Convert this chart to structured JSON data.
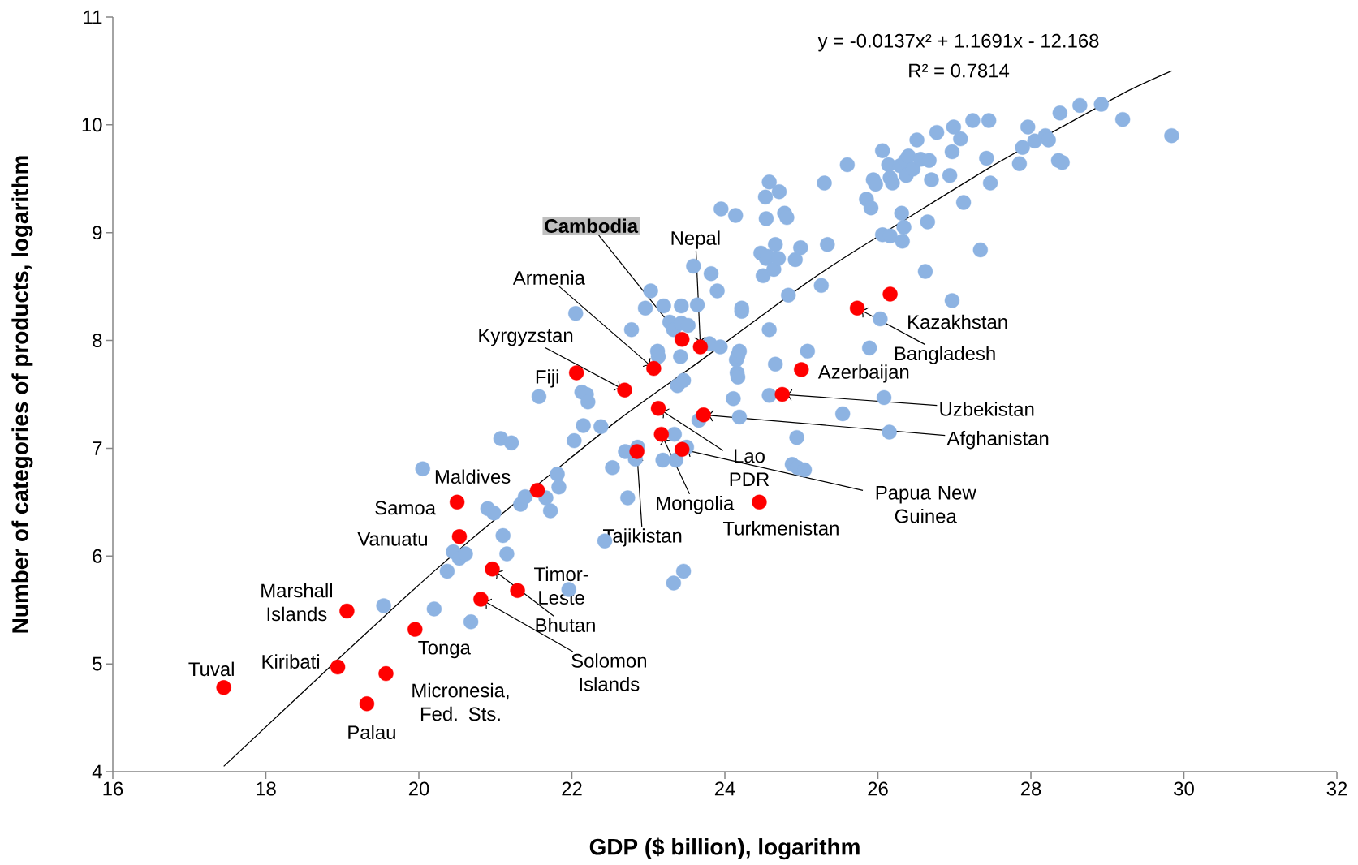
{
  "chart_data": {
    "type": "scatter",
    "xlabel": "GDP ($ billion), logarithm",
    "ylabel": "Number of categories of  products, logarithm",
    "xlim": [
      16,
      32
    ],
    "xticks": [
      16,
      18,
      20,
      22,
      24,
      26,
      28,
      30,
      32
    ],
    "ylim": [
      4,
      11
    ],
    "yticks": [
      4,
      5,
      6,
      7,
      8,
      9,
      10,
      11
    ],
    "marker": "circle",
    "series": [
      {
        "color": "#8db3e2",
        "x": [
          19.54,
          20.2,
          20.05,
          20.68,
          20.37,
          20.45,
          20.53,
          20.61,
          20.9,
          20.98,
          21.33,
          21.39,
          21.66,
          21.72,
          21.1,
          21.15,
          21.07,
          21.21,
          21.57,
          21.81,
          21.83,
          21.96,
          22.03,
          22.05,
          22.15,
          22.13,
          22.19,
          22.21,
          22.38,
          22.43,
          22.53,
          22.7,
          22.73,
          22.78,
          22.86,
          22.83,
          22.96,
          23.03,
          23.12,
          23.2,
          23.13,
          23.28,
          23.33,
          23.43,
          23.43,
          23.52,
          23.38,
          23.46,
          23.42,
          23.34,
          23.19,
          23.33,
          23.46,
          23.36,
          23.5,
          23.66,
          23.59,
          23.64,
          23.8,
          23.82,
          23.9,
          23.95,
          23.94,
          24.11,
          24.16,
          24.15,
          24.17,
          24.17,
          24.19,
          24.19,
          24.22,
          24.22,
          24.14,
          24.47,
          24.5,
          24.54,
          24.56,
          24.64,
          24.7,
          24.66,
          24.54,
          24.53,
          24.58,
          24.71,
          24.78,
          24.81,
          24.58,
          24.66,
          24.58,
          24.83,
          24.92,
          24.99,
          24.94,
          24.88,
          24.95,
          25.04,
          25.08,
          25.26,
          25.34,
          25.3,
          25.6,
          25.54,
          25.85,
          25.91,
          25.94,
          25.97,
          25.89,
          26.03,
          26.06,
          26.06,
          26.08,
          26.15,
          26.14,
          26.16,
          26.19,
          26.16,
          26.32,
          26.34,
          26.31,
          26.29,
          26.36,
          26.37,
          26.4,
          26.46,
          26.51,
          26.56,
          26.67,
          26.7,
          26.65,
          26.62,
          26.77,
          26.94,
          26.97,
          26.97,
          26.99,
          27.08,
          27.12,
          27.24,
          27.34,
          27.42,
          27.45,
          27.47,
          27.85,
          27.89,
          27.96,
          28.05,
          28.19,
          28.23,
          28.36,
          28.41,
          28.38,
          28.64,
          28.92,
          29.2,
          29.84
        ],
        "values": [
          5.54,
          5.51,
          6.81,
          5.39,
          5.86,
          6.04,
          5.98,
          6.02,
          6.44,
          6.4,
          6.48,
          6.55,
          6.54,
          6.42,
          6.19,
          6.02,
          7.09,
          7.05,
          7.48,
          6.76,
          6.64,
          5.69,
          7.07,
          8.25,
          7.21,
          7.52,
          7.5,
          7.43,
          7.2,
          6.14,
          6.82,
          6.97,
          6.54,
          8.1,
          7.01,
          6.9,
          8.3,
          8.46,
          7.9,
          8.32,
          7.85,
          8.17,
          8.1,
          8.32,
          8.16,
          8.14,
          7.58,
          7.63,
          7.85,
          7.13,
          6.89,
          5.75,
          5.86,
          6.89,
          7.01,
          7.26,
          8.69,
          8.33,
          7.97,
          8.62,
          8.46,
          9.22,
          7.94,
          7.46,
          7.7,
          7.82,
          7.66,
          7.86,
          7.9,
          7.29,
          8.27,
          8.3,
          9.16,
          8.81,
          8.6,
          8.76,
          8.78,
          8.66,
          8.76,
          8.89,
          9.13,
          9.33,
          9.47,
          9.38,
          9.18,
          9.14,
          8.1,
          7.78,
          7.49,
          8.42,
          8.75,
          8.86,
          7.1,
          6.85,
          6.82,
          6.8,
          7.9,
          8.51,
          8.89,
          9.46,
          9.63,
          7.32,
          9.31,
          9.23,
          9.49,
          9.45,
          7.93,
          8.2,
          8.98,
          9.76,
          7.47,
          7.15,
          9.63,
          9.51,
          9.46,
          8.97,
          8.92,
          9.05,
          9.18,
          9.62,
          9.67,
          9.53,
          9.71,
          9.59,
          9.86,
          9.68,
          9.67,
          9.49,
          9.1,
          8.64,
          9.93,
          9.53,
          9.75,
          8.37,
          9.98,
          9.87,
          9.28,
          10.04,
          8.84,
          9.69,
          10.04,
          9.46,
          9.64,
          9.79,
          9.98,
          9.85,
          9.9,
          9.86,
          9.67,
          9.65,
          10.11,
          10.18,
          10.19,
          10.05,
          9.9
        ]
      },
      {
        "color": "#ff0000",
        "x": [
          17.45,
          18.94,
          19.06,
          19.32,
          19.57,
          19.95,
          20.5,
          20.53,
          20.81,
          20.96,
          21.29,
          21.55,
          22.06,
          22.69,
          23.07,
          23.44,
          23.68,
          23.13,
          23.17,
          22.85,
          23.44,
          23.72,
          24.75,
          24.45,
          25.0,
          25.73,
          26.16
        ],
        "values": [
          4.78,
          4.97,
          5.49,
          4.63,
          4.91,
          5.32,
          6.5,
          6.18,
          5.6,
          5.88,
          5.68,
          6.61,
          7.7,
          7.54,
          7.74,
          8.01,
          7.94,
          7.37,
          7.13,
          6.97,
          6.99,
          7.31,
          7.5,
          6.5,
          7.73,
          8.3,
          8.43
        ]
      },
      {
        "type": "line",
        "color": "#000000",
        "marker": "none",
        "x": [
          17.45,
          19,
          20.2,
          21.15,
          22.6,
          23.66,
          25,
          25.7,
          27.5,
          29.2,
          29.84
        ],
        "values": [
          4.05,
          5.08,
          5.86,
          6.43,
          7.26,
          7.8,
          8.5,
          8.83,
          9.62,
          10.29,
          10.5
        ]
      }
    ],
    "annotations": [
      {
        "text": "Tuval",
        "x": 17.45,
        "y": 4.78
      },
      {
        "text": "Kiribati",
        "x": 18.94,
        "y": 4.97
      },
      {
        "text": "Marshall Islands",
        "x": 19.06,
        "y": 5.49
      },
      {
        "text": "Palau",
        "x": 19.32,
        "y": 4.63
      },
      {
        "text": "Micronesia, Fed. Sts.",
        "x": 19.57,
        "y": 4.91
      },
      {
        "text": "Tonga",
        "x": 19.95,
        "y": 5.32
      },
      {
        "text": "Samoa",
        "x": 20.5,
        "y": 6.5
      },
      {
        "text": "Vanuatu",
        "x": 20.53,
        "y": 6.18
      },
      {
        "text": "Solomon Islands",
        "x": 20.81,
        "y": 5.6
      },
      {
        "text": "Bhutan",
        "x": 20.96,
        "y": 5.88
      },
      {
        "text": "Timor-Leste",
        "x": 21.29,
        "y": 5.68
      },
      {
        "text": "Maldives",
        "x": 21.55,
        "y": 6.61
      },
      {
        "text": "Fiji",
        "x": 22.06,
        "y": 7.7
      },
      {
        "text": "Kyrgyzstan",
        "x": 22.69,
        "y": 7.54
      },
      {
        "text": "Armenia",
        "x": 23.07,
        "y": 7.74
      },
      {
        "text": "Cambodia",
        "x": 23.44,
        "y": 8.01
      },
      {
        "text": "Nepal",
        "x": 23.68,
        "y": 7.94
      },
      {
        "text": "Lao PDR",
        "x": 23.13,
        "y": 7.37
      },
      {
        "text": "Mongolia",
        "x": 23.17,
        "y": 7.13
      },
      {
        "text": "Tajikistan",
        "x": 22.85,
        "y": 6.97
      },
      {
        "text": "Papua New Guinea",
        "x": 23.44,
        "y": 6.99
      },
      {
        "text": "Afghanistan",
        "x": 23.72,
        "y": 7.31
      },
      {
        "text": "Uzbekistan",
        "x": 24.75,
        "y": 7.5
      },
      {
        "text": "Turkmenistan",
        "x": 24.45,
        "y": 6.5
      },
      {
        "text": "Azerbaijan",
        "x": 25.0,
        "y": 7.73
      },
      {
        "text": "Bangladesh",
        "x": 25.73,
        "y": 8.3
      },
      {
        "text": "Kazakhstan",
        "x": 26.16,
        "y": 8.43
      },
      "y = -0.0137x² + 1.1691x - 12.168",
      "R² = 0.7814"
    ]
  }
}
